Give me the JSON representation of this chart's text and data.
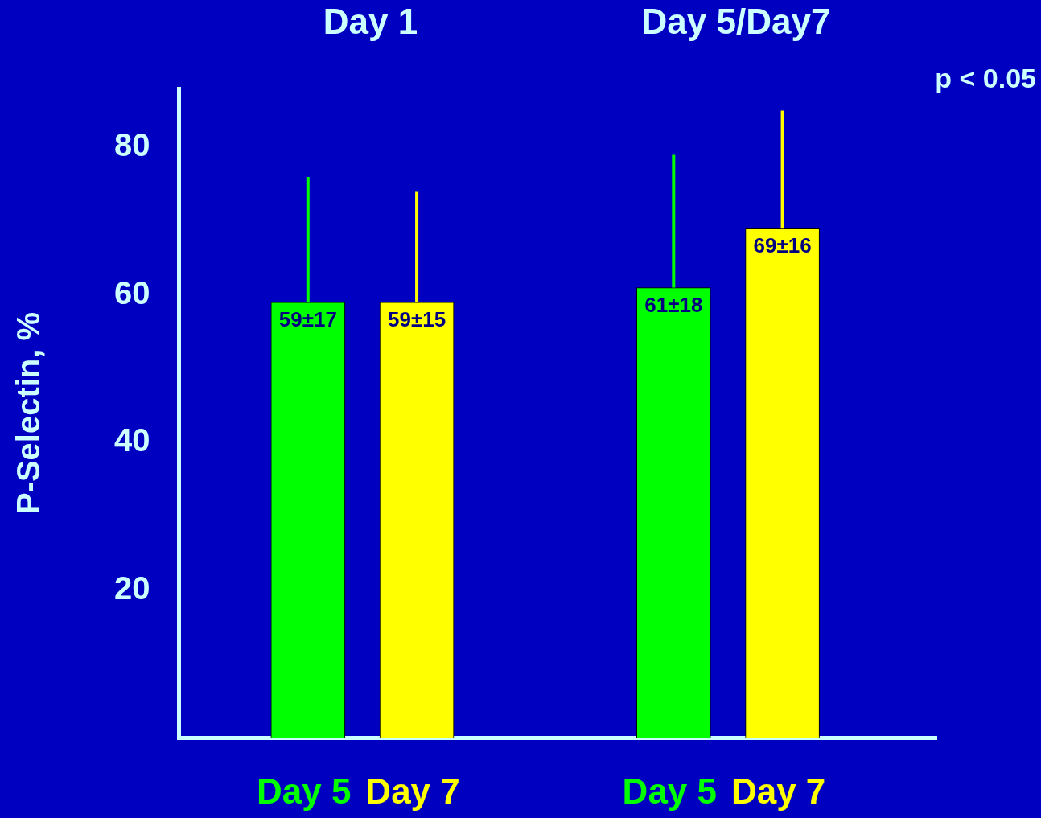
{
  "chart_data": {
    "type": "bar",
    "ylabel": "P-Selectin, %",
    "categories": [
      "Day 5",
      "Day 7",
      "Day 5",
      "Day 7"
    ],
    "values": [
      59,
      59,
      61,
      69
    ],
    "colors": [
      "#00ff00",
      "#ffff00",
      "#00ff00",
      "#ffff00"
    ],
    "errors": [
      [
        59,
        76
      ],
      [
        59,
        74
      ],
      [
        61,
        79
      ],
      [
        69,
        85
      ]
    ],
    "value_labels": [
      "59±17",
      "59±15",
      "61±18",
      "69±16"
    ],
    "ylim": [
      0,
      88
    ],
    "yticks": [
      20,
      40,
      60,
      80
    ],
    "grid": false,
    "legend": false,
    "annotations": [
      "Day 1",
      "Day 5/Day7",
      "p < 0.05"
    ]
  }
}
